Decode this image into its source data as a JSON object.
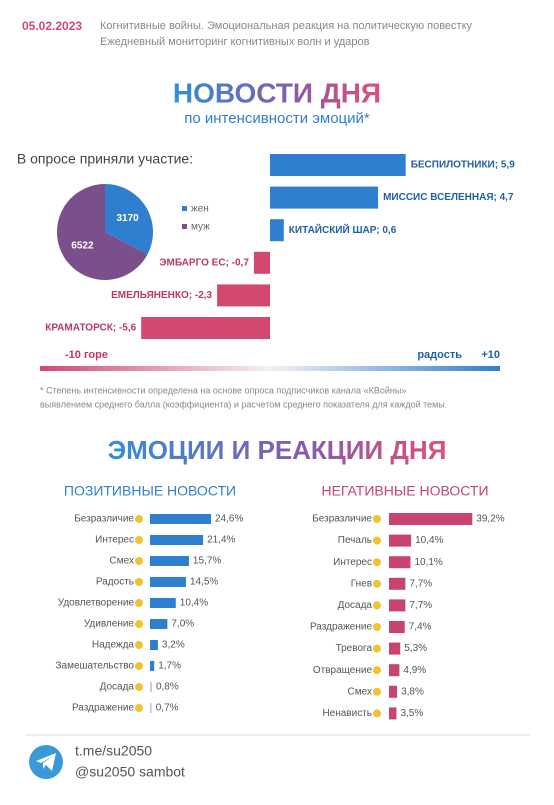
{
  "header": {
    "date": "05.02.2023",
    "line1": "Когнитивные войны. Эмоциональная реакция на политическую повестку",
    "line2": "Ежедневный мониторинг когнитивных волн и ударов"
  },
  "section1": {
    "title": "НОВОСТИ ДНЯ",
    "subtitle": "по интенсивности эмоций*"
  },
  "section2": {
    "title": "ЭМОЦИИ И РЕАКЦИИ ДНЯ"
  },
  "footnote": [
    "* Степень интенсивности определена на основе опроса подписчиков канала «КВойны»",
    "выявлением среднего балла (коэффициента) и расчетом среднего показателя для каждой темы."
  ],
  "footer": {
    "link": "t.me/su2050",
    "bot": "@su2050 sambot"
  },
  "chart_data": [
    {
      "type": "pie",
      "title": "В опросе приняли участие:",
      "categories": [
        "жен",
        "муж"
      ],
      "values": [
        3170,
        6522
      ],
      "colors": [
        "#2f7fd0",
        "#7b4f8b"
      ]
    },
    {
      "type": "bar",
      "value_labels": [
        "БЕСПИЛОТНИКИ; 5,9",
        "МИССИС ВСЕЛЕННАЯ; 4,7",
        "КИТАЙСКИЙ ШАР; 0,6",
        "ЭМБАРГО ЕС; -0,7",
        "ЕМЕЛЬЯНЕНКО; -2,3",
        "КРАМАТОРСК; -5,6"
      ],
      "values": [
        5.9,
        4.7,
        0.6,
        -0.7,
        -2.3,
        -5.6
      ],
      "positive_color": "#2f7fd0",
      "negative_color": "#d2496f",
      "xlim": [
        -10,
        10
      ],
      "xticks": [
        {
          "value": -10,
          "label": "-10  горе"
        },
        {
          "value": 10,
          "label": "+10"
        }
      ],
      "positive_label": "радость"
    },
    {
      "type": "bar",
      "title": "ПОЗИТИВНЫЕ НОВОСТИ",
      "categories": [
        "Безразличие",
        "Интерес",
        "Смех",
        "Радость",
        "Удовлетворение",
        "Удивление",
        "Надежда",
        "Замешательство",
        "Досада",
        "Раздражение"
      ],
      "values": [
        24.6,
        21.4,
        15.7,
        14.5,
        10.4,
        7.0,
        3.2,
        1.7,
        0.8,
        0.7
      ],
      "value_labels": [
        "24,6%",
        "21,4%",
        "15,7%",
        "14,5%",
        "10,4%",
        "7,0%",
        "3,2%",
        "1,7%",
        "0,8%",
        "0,7%"
      ],
      "color": "#2f7fd0",
      "xlim": [
        0,
        25
      ]
    },
    {
      "type": "bar",
      "title": "НЕГАТИВНЫЕ НОВОСТИ",
      "categories": [
        "Безразличие",
        "Печаль",
        "Интерес",
        "Гнев",
        "Досада",
        "Раздражение",
        "Тревога",
        "Отвращение",
        "Смех",
        "Ненависть"
      ],
      "values": [
        39.2,
        10.4,
        10.1,
        7.7,
        7.7,
        7.4,
        5.3,
        4.9,
        3.8,
        3.5
      ],
      "value_labels": [
        "39,2%",
        "10,4%",
        "10,1%",
        "7,7%",
        "7,7%",
        "7,4%",
        "5,3%",
        "4,9%",
        "3,8%",
        "3,5%"
      ],
      "color": "#c8436e",
      "xlim": [
        0,
        40
      ]
    }
  ]
}
